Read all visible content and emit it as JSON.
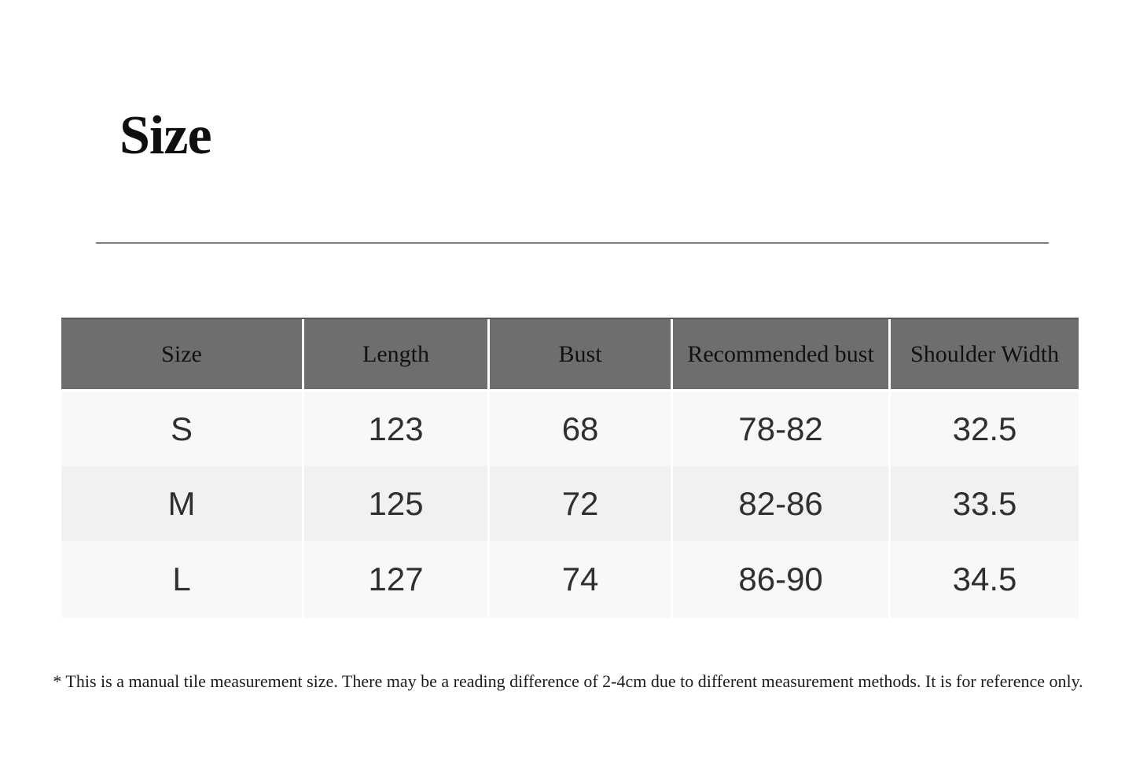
{
  "section": {
    "title": "Size",
    "footnote": "* This is a manual tile measurement size. There may be a reading difference of 2-4cm due to different measurement methods. It is for reference only."
  },
  "table": {
    "headers": [
      "Size",
      "Length",
      "Bust",
      "Recommended bust",
      "Shoulder Width"
    ],
    "rows": [
      [
        "S",
        "123",
        "68",
        "78-82",
        "32.5"
      ],
      [
        "M",
        "125",
        "72",
        "82-86",
        "33.5"
      ],
      [
        "L",
        "127",
        "74",
        "86-90",
        "34.5"
      ]
    ]
  },
  "chart_data": {
    "type": "table",
    "title": "Size",
    "columns": [
      "Size",
      "Length",
      "Bust",
      "Recommended bust",
      "Shoulder Width"
    ],
    "rows": [
      {
        "size": "S",
        "length": 123,
        "bust": 68,
        "recommended_bust": "78-82",
        "shoulder_width": 32.5
      },
      {
        "size": "M",
        "length": 125,
        "bust": 72,
        "recommended_bust": "82-86",
        "shoulder_width": 33.5
      },
      {
        "size": "L",
        "length": 127,
        "bust": 74,
        "recommended_bust": "86-90",
        "shoulder_width": 34.5
      }
    ],
    "footnote": "* This is a manual tile measurement size. There may be a reading difference of 2-4cm due to different measurement methods. It is for reference only."
  },
  "colors": {
    "page_bg": "#ffffff",
    "header_bg": "#6e6e6e",
    "header_text": "#111111",
    "row_bg_light": "#f8f8f8",
    "row_bg_alt": "#f1f1f1",
    "cell_text": "#2f2f2f",
    "divider": "#7e7e7e",
    "cell_separator": "#ffffff",
    "title_text": "#0f0f0f",
    "footnote_text": "#1a1a1a"
  }
}
